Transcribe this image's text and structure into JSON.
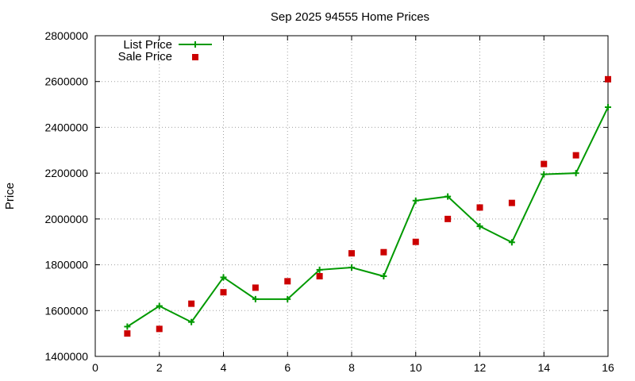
{
  "chart_data": {
    "type": "line",
    "title": "Sep 2025 94555 Home Prices",
    "xlabel": "",
    "ylabel": "Price",
    "xlim": [
      0,
      16
    ],
    "ylim": [
      1400000,
      2800000
    ],
    "x_ticks": [
      0,
      2,
      4,
      6,
      8,
      10,
      12,
      14,
      16
    ],
    "y_ticks": [
      1400000,
      1600000,
      1800000,
      2000000,
      2200000,
      2400000,
      2600000,
      2800000
    ],
    "grid": true,
    "legend_position": "top-left",
    "series": [
      {
        "name": "List Price",
        "style": "line-with-plus-markers",
        "color": "#009900",
        "x": [
          1,
          2,
          3,
          4,
          5,
          6,
          7,
          8,
          9,
          10,
          11,
          12,
          13,
          14,
          15,
          16
        ],
        "values": [
          1530000,
          1620000,
          1550000,
          1745000,
          1650000,
          1650000,
          1778000,
          1788000,
          1750000,
          2080000,
          2098000,
          1968000,
          1898000,
          2195000,
          2200000,
          2488000
        ]
      },
      {
        "name": "Sale Price",
        "style": "square-markers",
        "color": "#cc0000",
        "x": [
          1,
          2,
          3,
          4,
          5,
          6,
          7,
          8,
          9,
          10,
          11,
          12,
          13,
          14,
          15,
          16
        ],
        "values": [
          1500000,
          1520000,
          1630000,
          1680000,
          1700000,
          1728000,
          1750000,
          1850000,
          1855000,
          1900000,
          2000000,
          2050000,
          2070000,
          2240000,
          2278000,
          2610000
        ]
      }
    ]
  }
}
